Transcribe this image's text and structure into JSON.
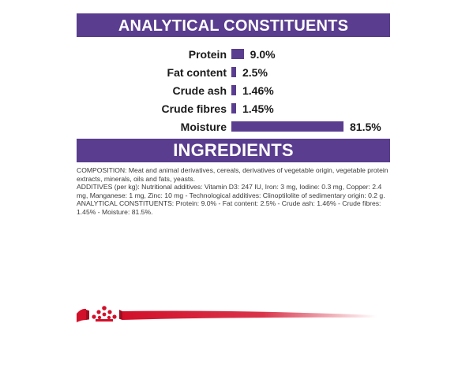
{
  "analytical": {
    "title": "ANALYTICAL CONSTITUENTS",
    "rows": [
      {
        "label": "Protein",
        "value": "9.0%",
        "percent": 9.0
      },
      {
        "label": "Fat content",
        "value": "2.5%",
        "percent": 2.5
      },
      {
        "label": "Crude ash",
        "value": "1.46%",
        "percent": 1.46
      },
      {
        "label": "Crude fibres",
        "value": "1.45%",
        "percent": 1.45
      },
      {
        "label": "Moisture",
        "value": "81.5%",
        "percent": 81.5
      }
    ]
  },
  "ingredients": {
    "title": "INGREDIENTS",
    "composition": "COMPOSITION: Meat and animal derivatives, cereals, derivatives of vegetable origin, vegetable protein extracts, minerals, oils and fats, yeasts.",
    "additives": "ADDITIVES (per kg): Nutritional additives: Vitamin D3: 247 IU, Iron: 3 mg, Iodine: 0.3 mg, Copper: 2.4 mg, Manganese: 1 mg, Zinc: 10 mg - Technological additives: Clinoptilolite of sedimentary origin: 0.2 g.",
    "analytical": "ANALYTICAL CONSTITUENTS: Protein: 9.0% - Fat content: 2.5% - Crude ash: 1.46% - Crude fibres: 1.45% - Moisture: 81.5%."
  },
  "colors": {
    "header_bg": "#5a3d8f",
    "bar": "#5a3d8f",
    "brand_red": "#d2102a"
  },
  "footer": {
    "logo_icon": "crown-logo-icon"
  }
}
